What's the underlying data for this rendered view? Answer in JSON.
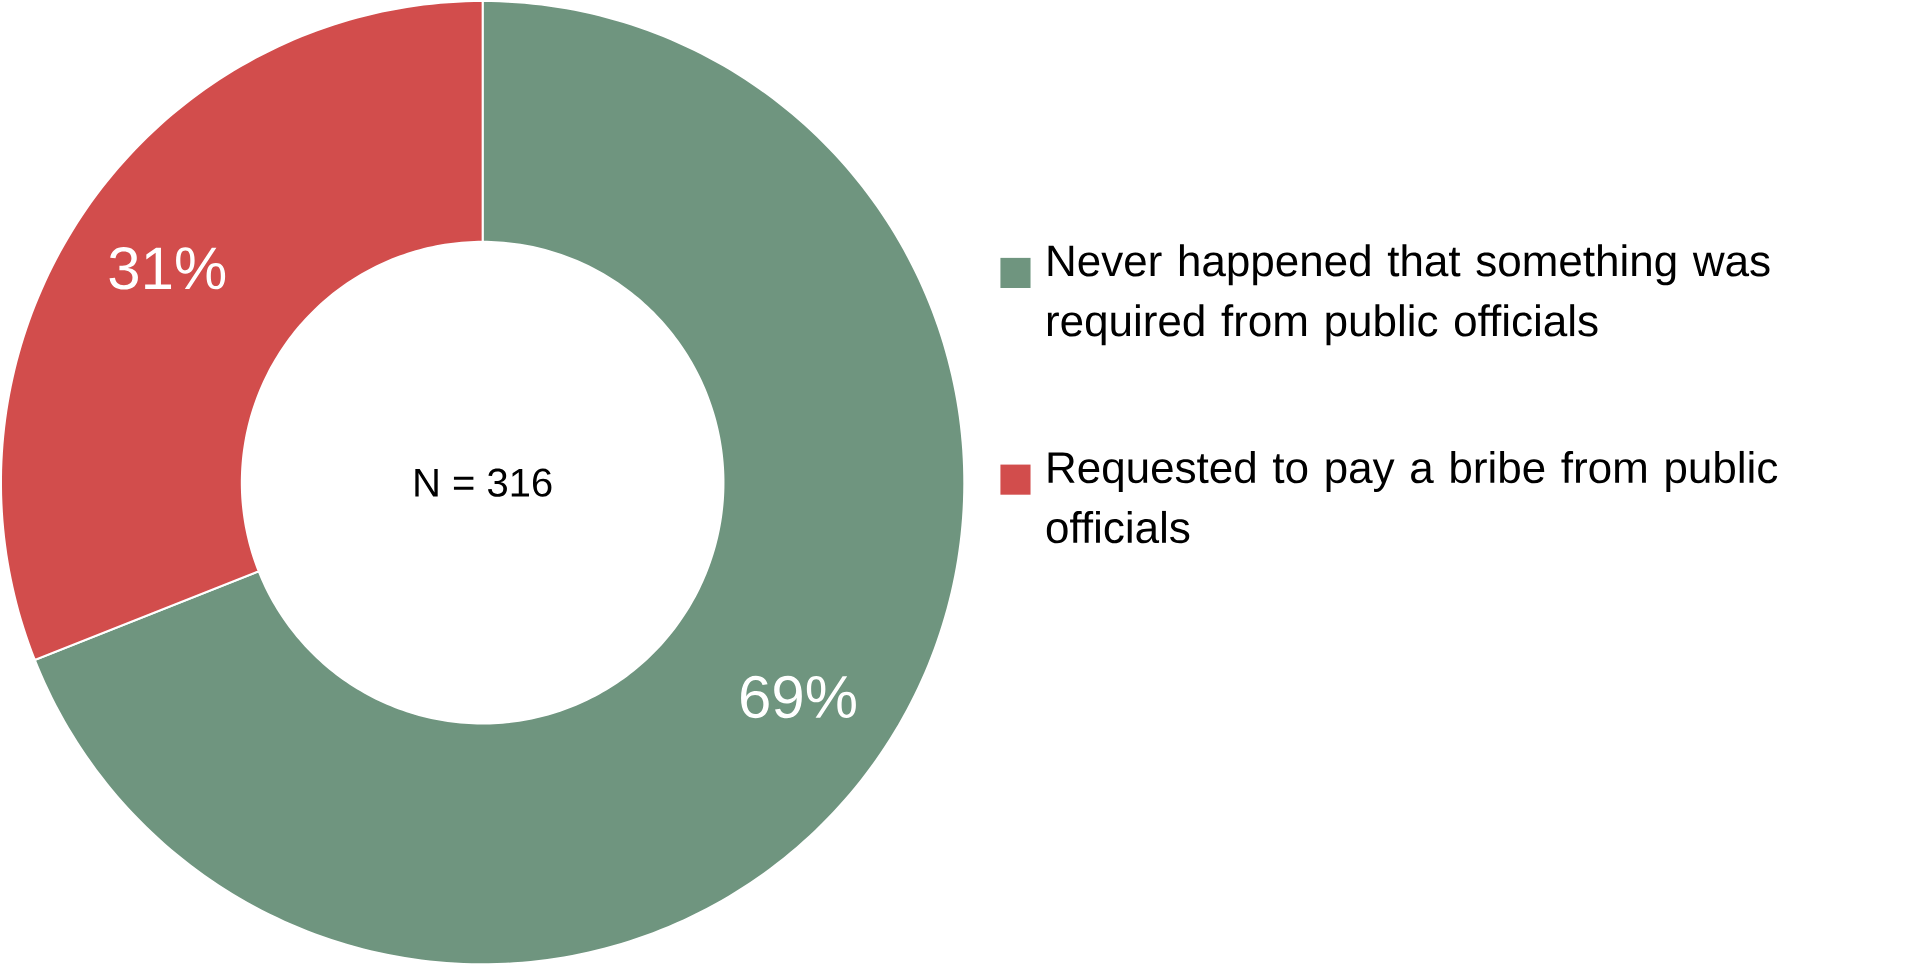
{
  "chart_data": {
    "type": "donut",
    "categories": [
      "Never happened that something was required from public officials",
      "Requested to pay a bribe from public officials"
    ],
    "values": [
      69,
      31
    ],
    "colors": [
      "#6f957f",
      "#d24d4c"
    ],
    "value_labels": [
      "69%",
      "31%"
    ],
    "annotations": [
      "N = 316"
    ],
    "legend": "right"
  }
}
